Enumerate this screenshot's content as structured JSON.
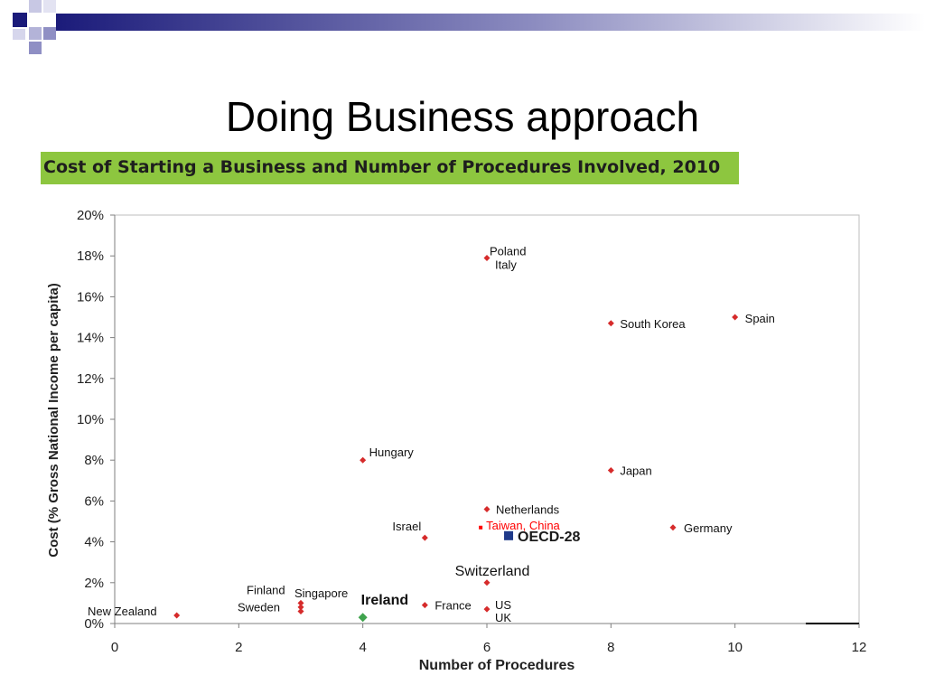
{
  "slide": {
    "title": "Doing Business approach",
    "chart_title": "Cost of Starting a Business and Number of Procedures Involved, 2010"
  },
  "colors": {
    "point": "#d62b2b",
    "oecd": "#1f3a8a",
    "ireland": "#3fa34d",
    "highlight": "#ff0000",
    "header_bar": "#8dc63f",
    "deco_dark": "#1b1b7a"
  },
  "chart_data": {
    "type": "scatter",
    "xlabel": "Number of Procedures",
    "ylabel": "Cost (% Gross National Income per capita)",
    "xlim": [
      0,
      12
    ],
    "ylim": [
      0,
      20
    ],
    "x_ticks": [
      0,
      2,
      4,
      6,
      8,
      10,
      12
    ],
    "y_ticks": [
      0,
      2,
      4,
      6,
      8,
      10,
      12,
      14,
      16,
      18,
      20
    ],
    "y_tick_labels": [
      "0%",
      "2%",
      "4%",
      "6%",
      "8%",
      "10%",
      "12%",
      "14%",
      "16%",
      "18%",
      "20%"
    ],
    "grid": false,
    "points": [
      {
        "label": "Poland",
        "x": 6,
        "y": 17.9
      },
      {
        "label": "Italy",
        "x": 6,
        "y": 17.9
      },
      {
        "label": "South Korea",
        "x": 8,
        "y": 14.7
      },
      {
        "label": "Spain",
        "x": 10,
        "y": 15.0
      },
      {
        "label": "Hungary",
        "x": 4,
        "y": 8.0
      },
      {
        "label": "Japan",
        "x": 8,
        "y": 7.5
      },
      {
        "label": "Netherlands",
        "x": 6,
        "y": 5.6
      },
      {
        "label": "Germany",
        "x": 9,
        "y": 4.7
      },
      {
        "label": "Israel",
        "x": 5,
        "y": 4.2
      },
      {
        "label": "Switzerland",
        "x": 6,
        "y": 2.0
      },
      {
        "label": "New Zealand",
        "x": 1,
        "y": 0.4
      },
      {
        "label": "Finland",
        "x": 3,
        "y": 1.0
      },
      {
        "label": "Singapore",
        "x": 3,
        "y": 0.8
      },
      {
        "label": "Sweden",
        "x": 3,
        "y": 0.6
      },
      {
        "label": "France",
        "x": 5,
        "y": 0.9
      },
      {
        "label": "US",
        "x": 6,
        "y": 0.7
      },
      {
        "label": "UK",
        "x": 6,
        "y": 0.7
      }
    ],
    "highlights": [
      {
        "label": "Ireland",
        "x": 4,
        "y": 0.3
      },
      {
        "label": "OECD-28",
        "x": 6.35,
        "y": 4.3
      },
      {
        "label": "Taiwan, China",
        "x": 5.9,
        "y": 4.7
      }
    ]
  }
}
